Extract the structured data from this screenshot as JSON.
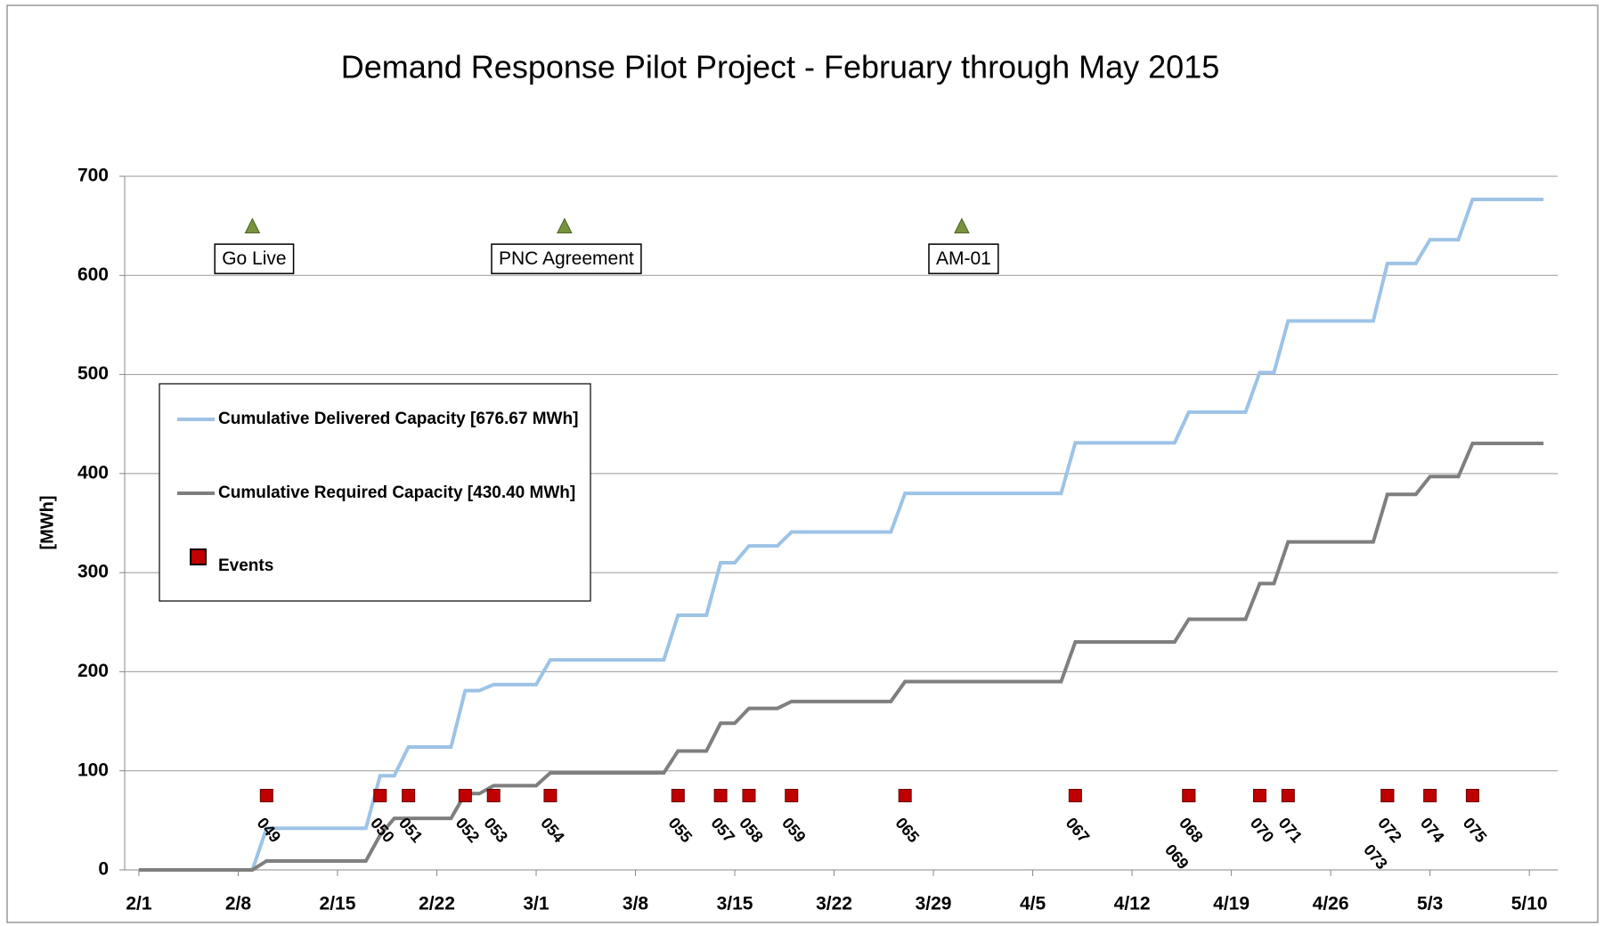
{
  "chart_data": {
    "type": "line",
    "title": "Demand Response Pilot Project  - February through May 2015",
    "y_label": "[MWh]",
    "x": [
      "2/1",
      "2/9",
      "2/10",
      "2/17",
      "2/18",
      "2/19",
      "2/20",
      "2/23",
      "2/24",
      "2/25",
      "2/26",
      "3/1",
      "3/2",
      "3/10",
      "3/11",
      "3/13",
      "3/14",
      "3/15",
      "3/16",
      "3/18",
      "3/19",
      "3/26",
      "3/27",
      "4/7",
      "4/8",
      "4/15",
      "4/16",
      "4/20",
      "4/21",
      "4/22",
      "4/23",
      "4/29",
      "4/30",
      "5/2",
      "5/3",
      "5/5",
      "5/6",
      "5/11"
    ],
    "series": [
      {
        "name": "Cumulative Delivered Capacity [676.67 MWh]",
        "color": "#9dc3e6",
        "values": [
          0,
          0,
          42,
          42,
          95,
          95,
          124,
          124,
          181,
          181,
          187,
          187,
          212,
          212,
          257,
          257,
          310,
          310,
          327,
          327,
          341,
          341,
          380,
          380,
          431,
          431,
          462,
          462,
          502,
          502,
          554,
          554,
          612,
          612,
          636,
          636,
          676.67,
          676.67
        ]
      },
      {
        "name": "Cumulative Required Capacity [430.40 MWh]",
        "color": "#7f7f7f",
        "values": [
          0,
          0,
          9,
          9,
          35,
          52,
          52,
          52,
          77,
          77,
          85,
          85,
          98,
          98,
          120,
          120,
          148,
          148,
          163,
          163,
          170,
          170,
          190,
          190,
          230,
          230,
          253,
          253,
          289,
          289,
          331,
          331,
          379,
          379,
          397,
          397,
          430.4,
          430.4
        ]
      }
    ],
    "events": {
      "name": "Events",
      "color": "#c00000",
      "x": [
        "2/10",
        "2/18",
        "2/20",
        "2/24",
        "2/26",
        "3/2",
        "3/11",
        "3/14",
        "3/16",
        "3/19",
        "3/27",
        "4/8",
        "4/16",
        "4/16",
        "4/21",
        "4/23",
        "4/30",
        "4/30",
        "5/3",
        "5/6"
      ],
      "values": [
        75,
        75,
        75,
        75,
        75,
        75,
        75,
        75,
        75,
        75,
        75,
        75,
        75,
        75,
        75,
        75,
        75,
        75,
        75,
        75
      ],
      "labels": [
        "049",
        "050",
        "051",
        "052",
        "053",
        "054",
        "055",
        "057",
        "058",
        "059",
        "065",
        "067",
        "068",
        "069",
        "070",
        "071",
        "072",
        "073",
        "074",
        "075"
      ]
    },
    "annotations": [
      {
        "x": "2/9",
        "y": 650,
        "label": "Go Live"
      },
      {
        "x": "3/3",
        "y": 650,
        "label": "PNC Agreement"
      },
      {
        "x": "3/31",
        "y": 650,
        "label": "AM-01"
      }
    ],
    "xlim": [
      "1/31",
      "5/12"
    ],
    "xticks": [
      "2/1",
      "2/8",
      "2/15",
      "2/22",
      "3/1",
      "3/8",
      "3/15",
      "3/22",
      "3/29",
      "4/5",
      "4/12",
      "4/19",
      "4/26",
      "5/3",
      "5/10"
    ],
    "ylim": [
      0,
      700
    ],
    "yticks": [
      0,
      100,
      200,
      300,
      400,
      500,
      600,
      700
    ],
    "grid": true
  }
}
